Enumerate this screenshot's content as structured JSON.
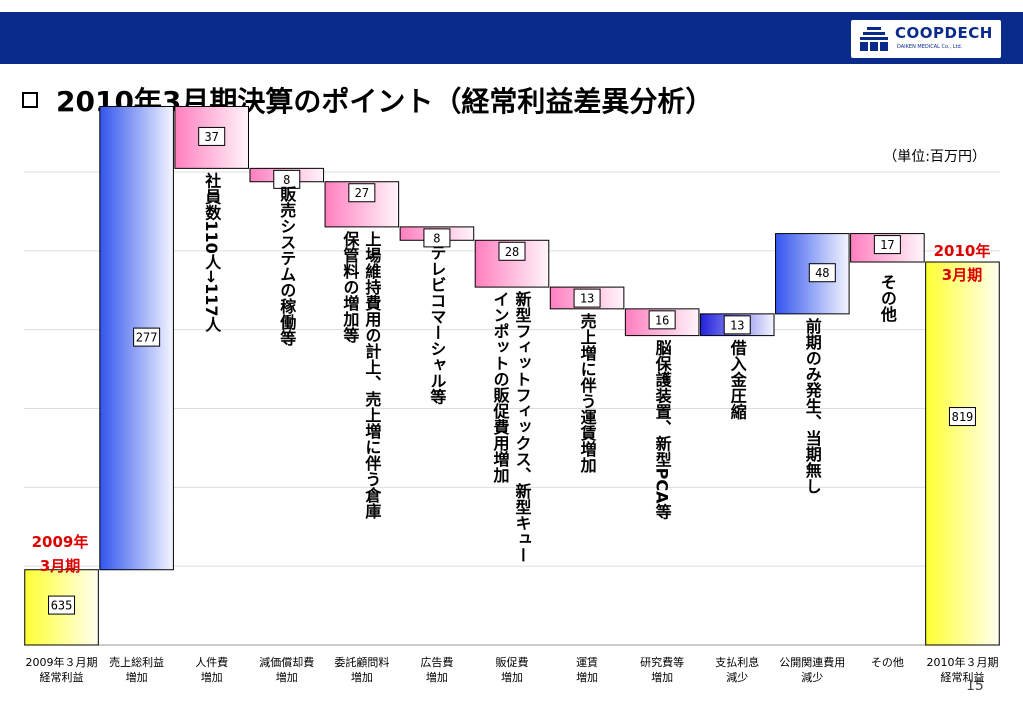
{
  "header": {
    "logo_text": "COOPDECH",
    "logo_subtext": "DAIKEN MEDICAL Co., Ltd."
  },
  "title": "2010年3月期決算のポイント（経常利益差異分析）",
  "page_number": "15",
  "colors": {
    "header_bar": "#0a2a8c",
    "start_end_fill": "#ffff33",
    "increase_large": "#3355ee",
    "increase_small": "#ff7fbf",
    "decrease": "#2222dd",
    "year_label": "#dd0000"
  },
  "chart_data": {
    "type": "waterfall",
    "unit_label": "（単位:百万円）",
    "ylim": [
      590,
      880
    ],
    "grid": true,
    "start_marker": "2009年\n3月期",
    "end_marker": "2010年\n3月期",
    "bars": [
      {
        "category": "2009年３月期\n経常利益",
        "value": 635,
        "label": "635",
        "kind": "total",
        "note": ""
      },
      {
        "category": "売上総利益\n増加",
        "value": 277,
        "label": "277",
        "kind": "increase",
        "note": ""
      },
      {
        "category": "人件費\n増加",
        "value": -37,
        "label": "37",
        "kind": "decrease",
        "note": "社員数110人→117人"
      },
      {
        "category": "減価償却費\n増加",
        "value": -8,
        "label": "8",
        "kind": "decrease",
        "note": "販売システムの稼働等"
      },
      {
        "category": "委託顧問料\n増加",
        "value": -27,
        "label": "27",
        "kind": "decrease",
        "note": "上場維持費用の計上、売上増に伴う倉庫\n保管料の増加等"
      },
      {
        "category": "広告費\n増加",
        "value": -8,
        "label": "8",
        "kind": "decrease",
        "note": "テレビコマーシャル等"
      },
      {
        "category": "販促費\n増加",
        "value": -28,
        "label": "28",
        "kind": "decrease",
        "note": "新型フィットフィックス、新型キュー\nインポットの販促費用増加"
      },
      {
        "category": "運賃\n増加",
        "value": -13,
        "label": "13",
        "kind": "decrease",
        "note": "売上増に伴う運賃増加"
      },
      {
        "category": "研究費等\n増加",
        "value": -16,
        "label": "16",
        "kind": "decrease",
        "note": "脳保護装置、新型PCA等"
      },
      {
        "category": "支払利息\n減少",
        "value": 13,
        "label": "13",
        "kind": "increase",
        "note": "借入金圧縮"
      },
      {
        "category": "公開関連費用\n減少",
        "value": 48,
        "label": "48",
        "kind": "increase",
        "note": "前期のみ発生、当期無し"
      },
      {
        "category": "その他",
        "value": -17,
        "label": "17",
        "kind": "decrease",
        "note": "その他"
      },
      {
        "category": "2010年３月期\n経常利益",
        "value": 819,
        "label": "819",
        "kind": "total",
        "note": ""
      }
    ]
  }
}
